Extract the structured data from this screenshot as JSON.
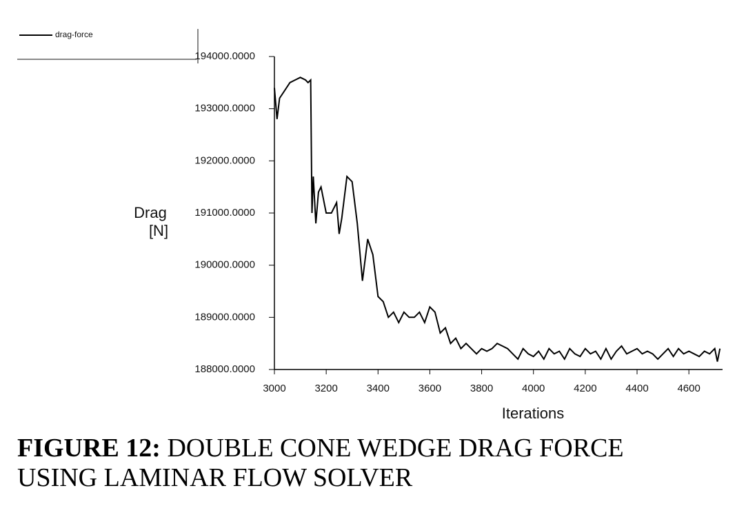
{
  "chart_data": {
    "type": "line",
    "caption_label": "FIGURE 12:",
    "caption_lines": [
      "DOUBLE CONE WEDGE DRAG FORCE",
      "USING LAMINAR FLOW SOLVER"
    ],
    "xlabel": "Iterations",
    "ylabel_lines": [
      "Drag",
      "[N]"
    ],
    "xlim": [
      3000,
      4730
    ],
    "ylim": [
      188000,
      194000
    ],
    "xticks": [
      3000,
      3200,
      3400,
      3600,
      3800,
      4000,
      4200,
      4400,
      4600
    ],
    "yticks": [
      {
        "value": 188000,
        "label": "188000.0000"
      },
      {
        "value": 189000,
        "label": "189000.0000"
      },
      {
        "value": 190000,
        "label": "190000.0000"
      },
      {
        "value": 191000,
        "label": "191000.0000"
      },
      {
        "value": 192000,
        "label": "192000.0000"
      },
      {
        "value": 193000,
        "label": "193000.0000"
      },
      {
        "value": 194000,
        "label": "194000.0000"
      }
    ],
    "x": [
      3000,
      3010,
      3020,
      3040,
      3060,
      3080,
      3100,
      3120,
      3130,
      3140,
      3145,
      3150,
      3160,
      3170,
      3180,
      3200,
      3220,
      3240,
      3250,
      3260,
      3280,
      3300,
      3320,
      3340,
      3360,
      3380,
      3400,
      3420,
      3440,
      3460,
      3480,
      3500,
      3520,
      3540,
      3560,
      3580,
      3600,
      3620,
      3640,
      3660,
      3680,
      3700,
      3720,
      3740,
      3760,
      3780,
      3800,
      3820,
      3840,
      3860,
      3880,
      3900,
      3920,
      3940,
      3960,
      3980,
      4000,
      4020,
      4040,
      4060,
      4080,
      4100,
      4120,
      4140,
      4160,
      4180,
      4200,
      4220,
      4240,
      4260,
      4280,
      4300,
      4320,
      4340,
      4360,
      4380,
      4400,
      4420,
      4440,
      4460,
      4480,
      4500,
      4520,
      4540,
      4560,
      4580,
      4600,
      4620,
      4640,
      4660,
      4680,
      4700,
      4710,
      4720
    ],
    "series": [
      {
        "name": "drag-force",
        "color": "#000000",
        "values": [
          193400,
          192800,
          193200,
          193350,
          193500,
          193550,
          193600,
          193550,
          193500,
          193550,
          191000,
          191700,
          190800,
          191400,
          191500,
          191000,
          191000,
          191200,
          190600,
          190900,
          191700,
          191600,
          190800,
          189700,
          190500,
          190200,
          189400,
          189300,
          189000,
          189100,
          188900,
          189100,
          189000,
          189000,
          189100,
          188900,
          189200,
          189100,
          188700,
          188800,
          188500,
          188600,
          188400,
          188500,
          188400,
          188300,
          188400,
          188350,
          188400,
          188500,
          188450,
          188400,
          188300,
          188200,
          188400,
          188300,
          188250,
          188350,
          188200,
          188400,
          188300,
          188350,
          188200,
          188400,
          188300,
          188250,
          188400,
          188300,
          188350,
          188200,
          188400,
          188200,
          188350,
          188450,
          188300,
          188350,
          188400,
          188300,
          188350,
          188300,
          188200,
          188300,
          188400,
          188250,
          188400,
          188300,
          188350,
          188300,
          188250,
          188350,
          188300,
          188400,
          188150,
          188400
        ]
      }
    ]
  }
}
